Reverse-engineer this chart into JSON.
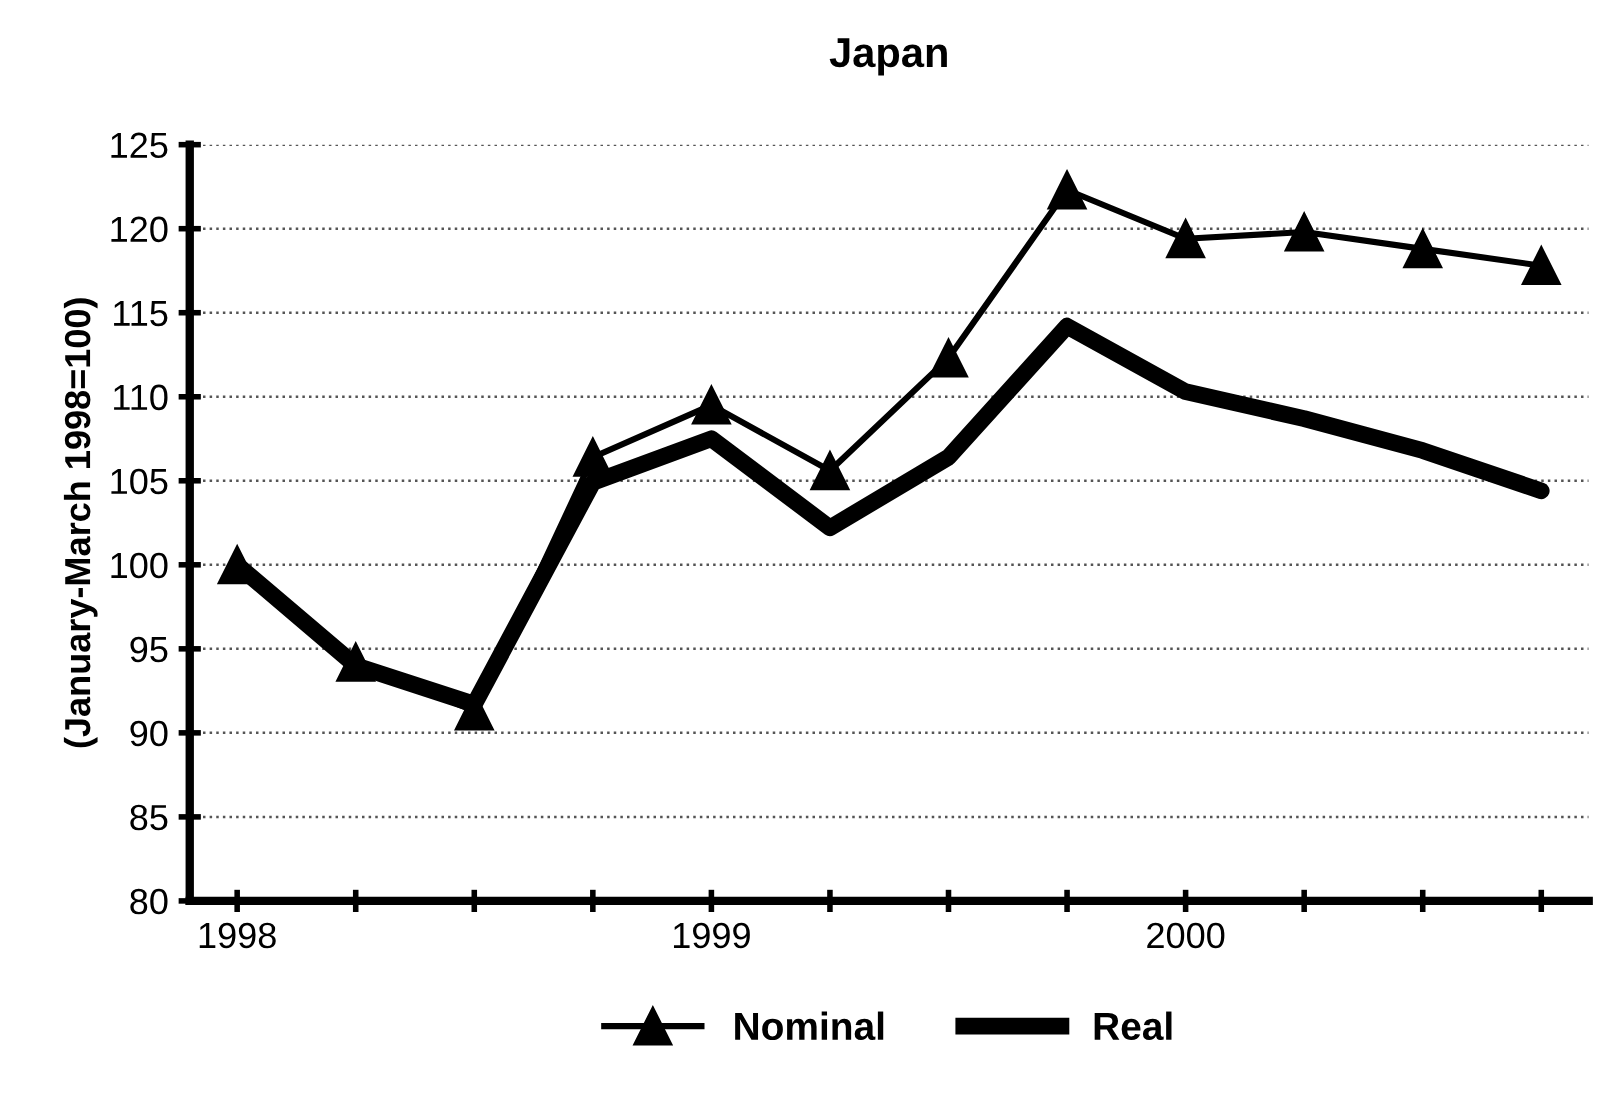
{
  "chart_data": {
    "type": "line",
    "title": "Japan",
    "ylabel": "(January-March 1998=100)",
    "categories": [
      "1998",
      null,
      null,
      null,
      "1999",
      null,
      null,
      null,
      "2000",
      null,
      null,
      null
    ],
    "series": [
      {
        "name": "Nominal",
        "color": "#000000",
        "marker": "triangle",
        "values": [
          100,
          94.2,
          91.3,
          106.4,
          109.5,
          105.6,
          112.3,
          122.3,
          119.4,
          119.8,
          118.8,
          117.8
        ]
      },
      {
        "name": "Real",
        "color": "#000000",
        "marker": "none",
        "values": [
          100,
          94,
          91.7,
          104.9,
          107.5,
          102.2,
          106.4,
          114.2,
          110.3,
          108.7,
          106.8,
          104.4
        ]
      }
    ],
    "ylim": [
      80,
      125
    ],
    "yticks": [
      80,
      85,
      90,
      95,
      100,
      105,
      110,
      115,
      120,
      125
    ],
    "grid": "y",
    "legend": "bottom"
  }
}
